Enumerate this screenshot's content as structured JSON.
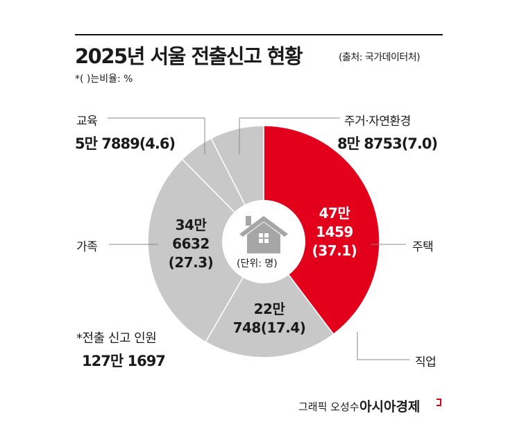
{
  "title": "2025년 서울 전출신고 현황",
  "source": "(출처: 국가데이터처)",
  "note": "*( )는비율: %",
  "unit": "(단위: 명)",
  "total_label": "*전출 신고 인원",
  "total_value": "127만 1697",
  "credit": "그래픽 오성수",
  "brand": "아시아경제",
  "colors": {
    "highlight": "#e3001b",
    "other": "#c8c8c8",
    "center_icon": "#a6a6a6"
  },
  "chart_data": {
    "type": "pie",
    "variant": "donut",
    "unit": "명",
    "slices": [
      {
        "label": "주택",
        "value": 471459,
        "value_text": "47만 1459",
        "percent": 37.1,
        "color": "#e3001b"
      },
      {
        "label": "직업",
        "value": 220748,
        "value_text": "22만 748",
        "percent": 17.4,
        "color": "#c8c8c8"
      },
      {
        "label": "가족",
        "value": 346632,
        "value_text": "34만 6632",
        "percent": 27.3,
        "color": "#c8c8c8"
      },
      {
        "label": "교육",
        "value": 57889,
        "value_text": "5만 7889",
        "percent": 4.6,
        "color": "#c8c8c8"
      },
      {
        "label": "주거·자연환경",
        "value": 88753,
        "value_text": "8만 8753",
        "percent": 7.0,
        "color": "#c8c8c8"
      }
    ]
  },
  "texts": {
    "housing": {
      "l1": "47만",
      "l2": "1459",
      "l3": "(37.1)"
    },
    "job": {
      "l1": "22만",
      "l2": "748(17.4)"
    },
    "family": {
      "l1": "34만",
      "l2": "6632",
      "l3": "(27.3)"
    },
    "education": {
      "value": "5만 7889(4.6)"
    },
    "environment": {
      "value": "8만 8753(7.0)"
    }
  }
}
